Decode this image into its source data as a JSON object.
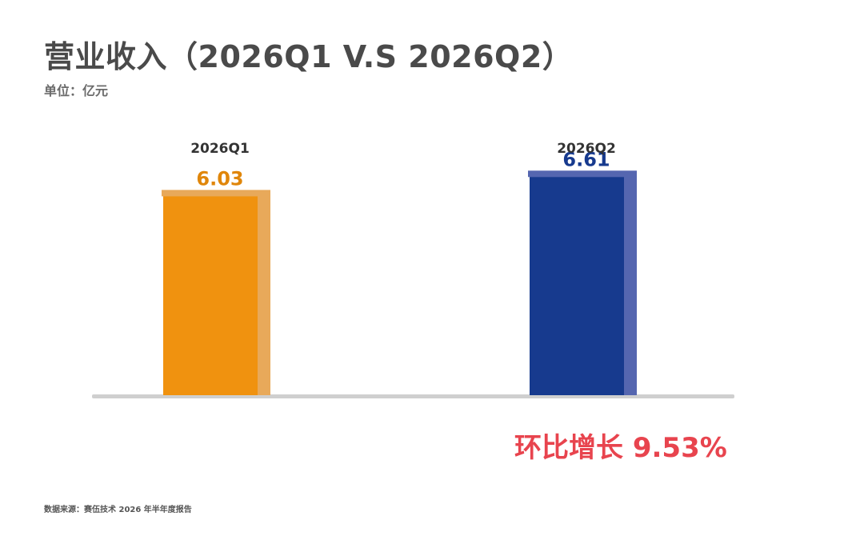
{
  "header": {
    "title": "营业收入（2026Q1 V.S 2026Q2）",
    "unit": "单位：亿元"
  },
  "annotation": {
    "growth": "环比增长 9.53%"
  },
  "footer": {
    "source": "数据来源：赛伍技术 2026 年半年度报告"
  },
  "colors": {
    "q1_bar": "#f0920f",
    "q1_bar_side": "#e8a95a",
    "q2_bar": "#173a8e",
    "q2_bar_side": "#5566b0",
    "baseline": "#cfcfcf",
    "growth_text": "#e8444e"
  },
  "chart_data": {
    "type": "bar",
    "categories": [
      "2026Q1",
      "2026Q2"
    ],
    "values": [
      6.03,
      6.61
    ],
    "value_labels": [
      "6.03",
      "6.61"
    ],
    "title": "营业收入（2026Q1 V.S 2026Q2）",
    "xlabel": "",
    "ylabel": "",
    "ylim": [
      0,
      9
    ],
    "grid": false,
    "legend": "none"
  }
}
